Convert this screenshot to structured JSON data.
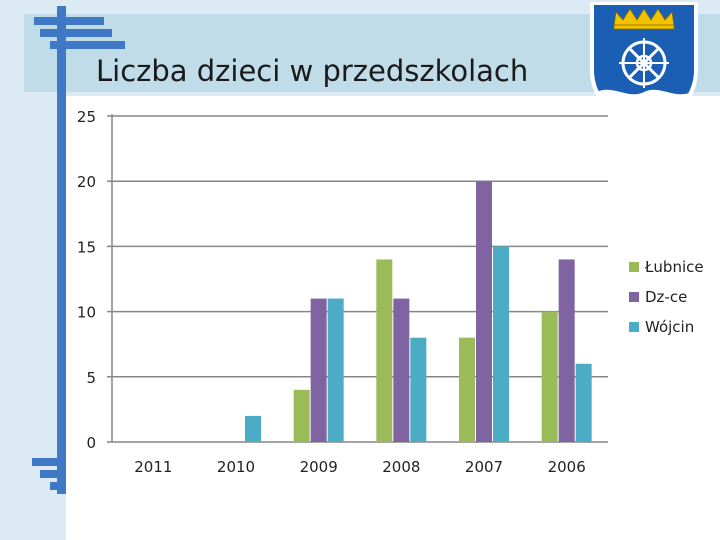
{
  "slide": {
    "title": "Liczba dzieci w przedszkolach"
  },
  "crest": {
    "colors": {
      "shield": "#1a5fb4",
      "crown": "#f2c200",
      "wave": "#ffffff"
    }
  },
  "chart_data": {
    "type": "bar",
    "categories": [
      "2011",
      "2010",
      "2009",
      "2008",
      "2007",
      "2006"
    ],
    "series": [
      {
        "name": "Łubnice",
        "color": "#9bbb59",
        "values": [
          0,
          0,
          4,
          14,
          8,
          10
        ]
      },
      {
        "name": "Dz-ce",
        "color": "#8064a2",
        "values": [
          0,
          0,
          11,
          11,
          20,
          14
        ]
      },
      {
        "name": "Wójcin",
        "color": "#4bacc6",
        "values": [
          0,
          2,
          11,
          8,
          15,
          6
        ]
      }
    ],
    "ylim": [
      0,
      25
    ],
    "yticks": [
      "0",
      "5",
      "10",
      "15",
      "20",
      "25"
    ],
    "grid": true,
    "legend": "right"
  }
}
